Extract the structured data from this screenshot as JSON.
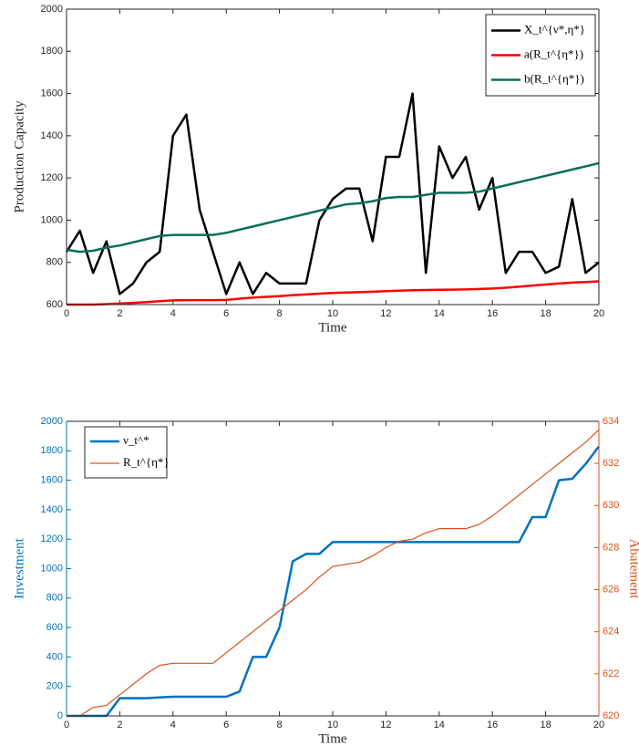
{
  "chart_data": [
    {
      "type": "line",
      "xlabel": "Time",
      "ylabel": "Production Capacity",
      "x": [
        0,
        0.5,
        1,
        1.5,
        2,
        2.5,
        3,
        3.5,
        4,
        4.5,
        5,
        5.5,
        6,
        6.5,
        7,
        7.5,
        8,
        8.5,
        9,
        9.5,
        10,
        10.5,
        11,
        11.5,
        12,
        12.5,
        13,
        13.5,
        14,
        14.5,
        15,
        15.5,
        16,
        16.5,
        17,
        17.5,
        18,
        18.5,
        19,
        19.5,
        20
      ],
      "xlim": [
        0,
        20
      ],
      "xticks": [
        0,
        2,
        4,
        6,
        8,
        10,
        12,
        14,
        16,
        18,
        20
      ],
      "ylim": [
        600,
        2000
      ],
      "yticks": [
        600,
        800,
        1000,
        1200,
        1400,
        1600,
        1800,
        2000
      ],
      "legend": "upper right",
      "series": [
        {
          "name": "X_t^{ν*,η*}",
          "color": "#000000",
          "values": [
            850,
            950,
            750,
            900,
            650,
            700,
            800,
            850,
            1400,
            1500,
            1050,
            850,
            650,
            800,
            650,
            750,
            700,
            700,
            700,
            1000,
            1100,
            1150,
            1150,
            900,
            1300,
            1300,
            1600,
            750,
            1350,
            1200,
            1300,
            1050,
            1200,
            750,
            850,
            850,
            750,
            780,
            1100,
            750,
            800
          ]
        },
        {
          "name": "a(R_t^{η*})",
          "color": "#ff0000",
          "values": [
            600,
            600,
            600,
            602,
            605,
            608,
            612,
            616,
            620,
            621,
            621,
            621,
            622,
            628,
            633,
            637,
            640,
            645,
            648,
            652,
            655,
            657,
            659,
            661,
            664,
            666,
            668,
            669,
            670,
            671,
            672,
            674,
            676,
            680,
            685,
            690,
            695,
            700,
            704,
            707,
            710
          ]
        },
        {
          "name": "b(R_t^{η*})",
          "color": "#0b6e5a",
          "values": [
            860,
            850,
            855,
            870,
            880,
            895,
            910,
            925,
            930,
            930,
            930,
            930,
            940,
            955,
            970,
            985,
            1000,
            1015,
            1030,
            1045,
            1060,
            1075,
            1080,
            1090,
            1105,
            1110,
            1110,
            1120,
            1130,
            1130,
            1130,
            1135,
            1150,
            1165,
            1180,
            1195,
            1210,
            1225,
            1240,
            1255,
            1270
          ]
        }
      ]
    },
    {
      "type": "line",
      "xlabel": "Time",
      "ylabel": "Investment",
      "y2label": "Abatement",
      "x": [
        0,
        0.5,
        1,
        1.5,
        2,
        2.5,
        3,
        3.5,
        4,
        4.5,
        5,
        5.5,
        6,
        6.5,
        7,
        7.5,
        8,
        8.5,
        9,
        9.5,
        10,
        10.5,
        11,
        11.5,
        12,
        12.5,
        13,
        13.5,
        14,
        14.5,
        15,
        15.5,
        16,
        16.5,
        17,
        17.5,
        18,
        18.5,
        19,
        19.5,
        20
      ],
      "xlim": [
        0,
        20
      ],
      "xticks": [
        0,
        2,
        4,
        6,
        8,
        10,
        12,
        14,
        16,
        18,
        20
      ],
      "ylim": [
        0,
        2000
      ],
      "yticks": [
        0,
        200,
        400,
        600,
        800,
        1000,
        1200,
        1400,
        1600,
        1800,
        2000
      ],
      "y2lim": [
        620,
        634
      ],
      "y2ticks": [
        620,
        622,
        624,
        626,
        628,
        630,
        632,
        634
      ],
      "ycolor": "#0072bd",
      "y2color": "#d95319",
      "legend": "upper left",
      "series": [
        {
          "name": "ν_t^*",
          "color": "#0072bd",
          "values": [
            0,
            0,
            0,
            0,
            120,
            120,
            120,
            125,
            130,
            130,
            130,
            130,
            130,
            165,
            400,
            400,
            600,
            1050,
            1100,
            1100,
            1180,
            1180,
            1180,
            1180,
            1180,
            1180,
            1180,
            1180,
            1180,
            1180,
            1180,
            1180,
            1180,
            1180,
            1180,
            1350,
            1350,
            1600,
            1610,
            1710,
            1830
          ]
        },
        {
          "name": "R_t^{η*}",
          "color": "#d95319",
          "axis": "y2",
          "values": [
            620,
            620,
            620.4,
            620.5,
            621,
            621.5,
            622,
            622.4,
            622.5,
            622.5,
            622.5,
            622.5,
            623,
            623.5,
            624,
            624.5,
            625,
            625.5,
            626,
            626.6,
            627.1,
            627.2,
            627.3,
            627.6,
            628,
            628.3,
            628.4,
            628.7,
            628.9,
            628.9,
            628.9,
            629.1,
            629.5,
            630,
            630.5,
            631,
            631.5,
            632,
            632.5,
            633,
            633.6
          ]
        }
      ]
    }
  ]
}
